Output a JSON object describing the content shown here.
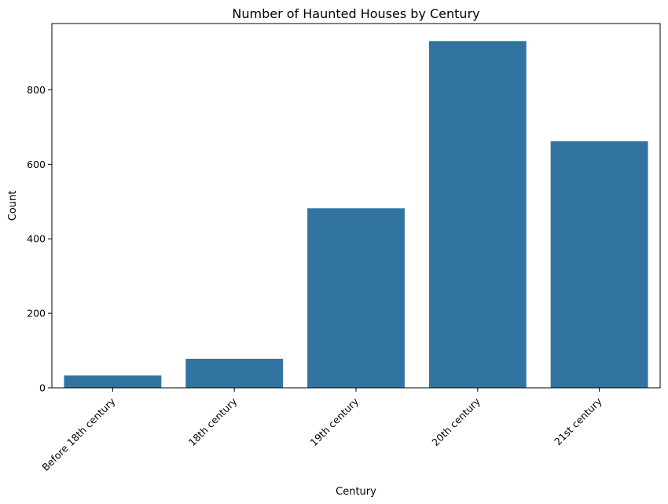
{
  "chart_data": {
    "type": "bar",
    "title": "Number of Haunted Houses by Century",
    "xlabel": "Century",
    "ylabel": "Count",
    "categories": [
      "Before 18th century",
      "18th century",
      "19th century",
      "20th century",
      "21st century"
    ],
    "values": [
      33,
      78,
      482,
      931,
      662
    ],
    "ylim": [
      0,
      978
    ],
    "yticks": [
      0,
      200,
      400,
      600,
      800
    ],
    "ytick_labels": [
      "0",
      "200",
      "400",
      "600",
      "800"
    ],
    "bar_color": "#3274a1",
    "grid": false,
    "legend": "none"
  }
}
